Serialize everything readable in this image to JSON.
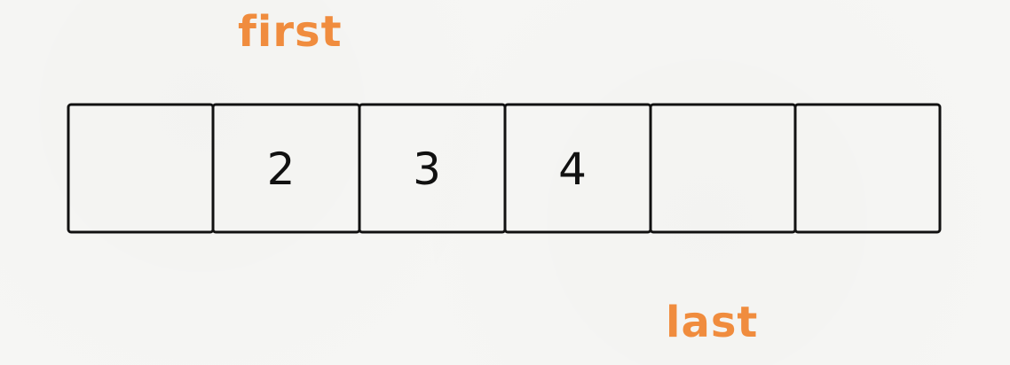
{
  "labels": {
    "first": "first",
    "last": "last"
  },
  "colors": {
    "label": "#f08c3e",
    "stroke": "#111111",
    "background": "#f6f6f4"
  },
  "array": {
    "cells": [
      "",
      "2",
      "3",
      "4",
      "",
      ""
    ],
    "first_index": 1,
    "last_index": 4
  }
}
